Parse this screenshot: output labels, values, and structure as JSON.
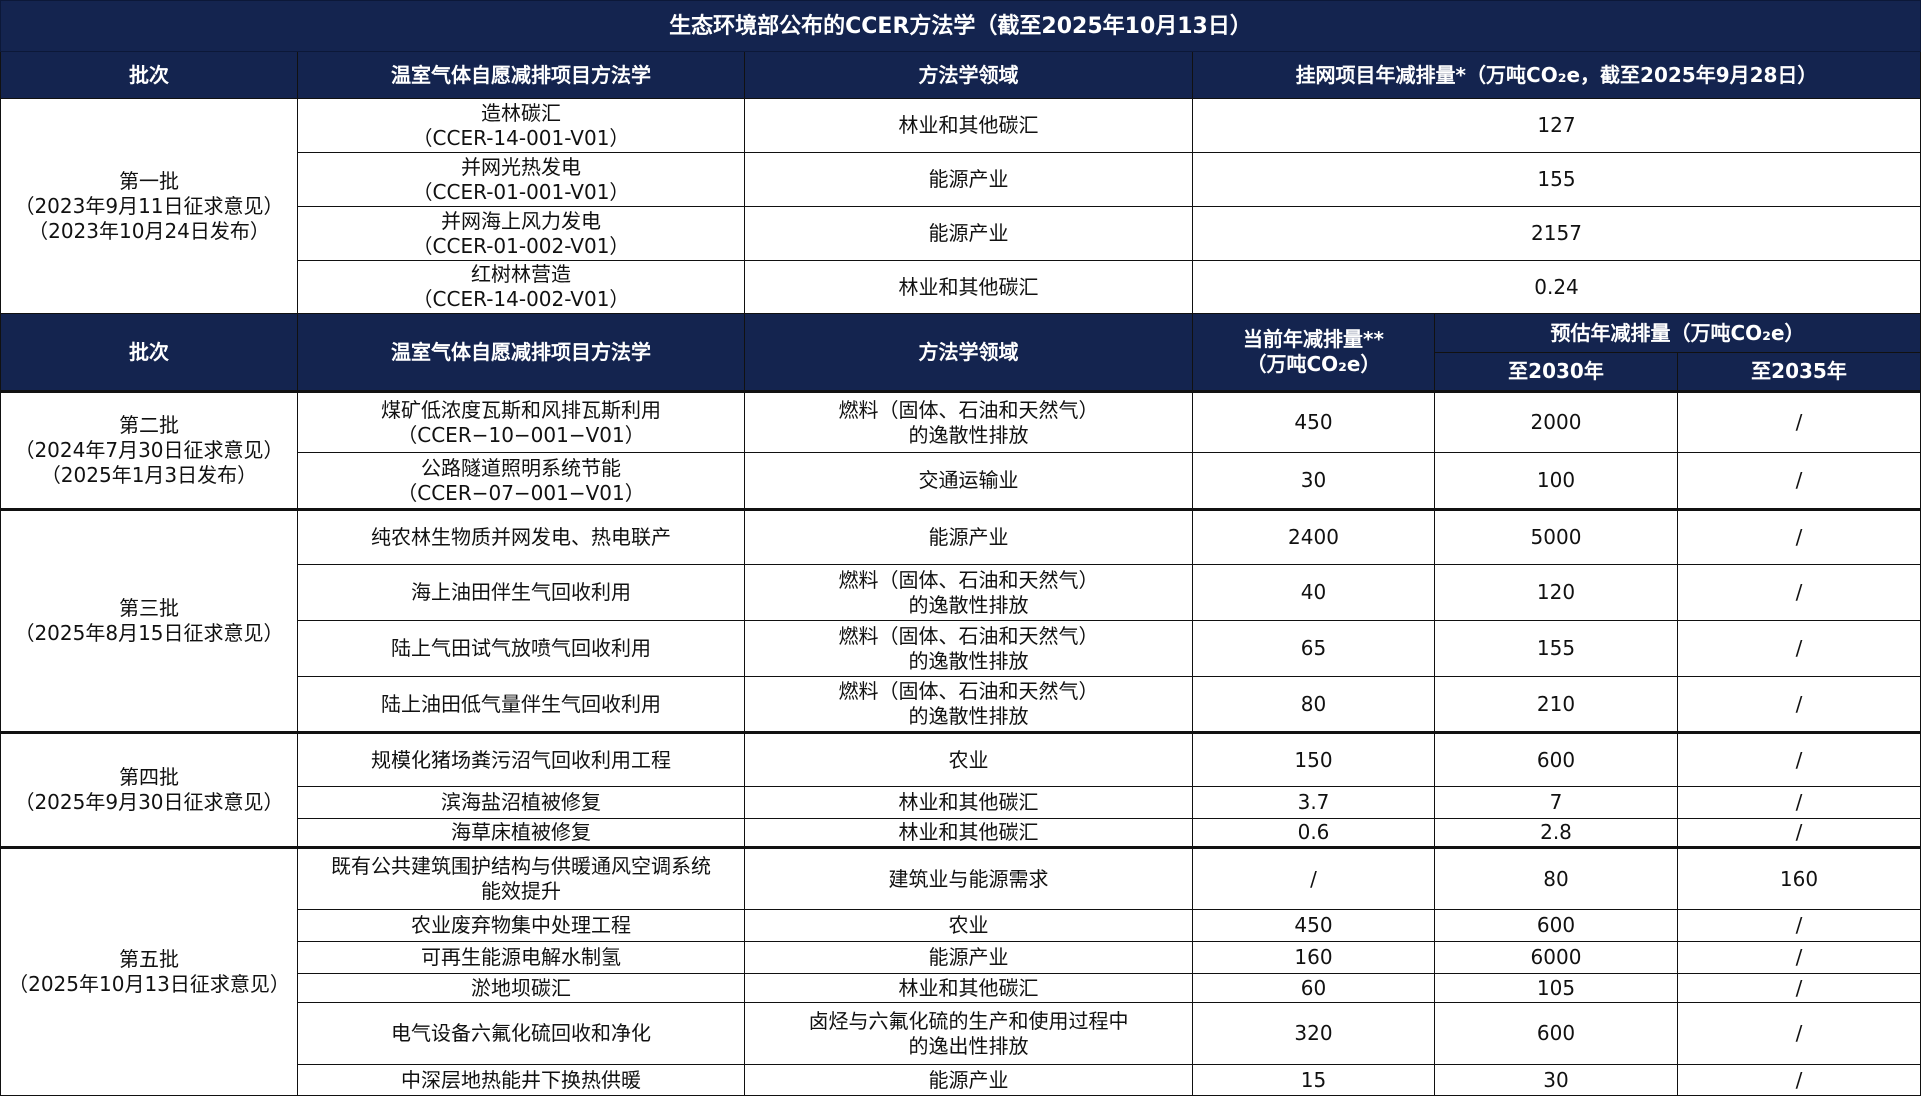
{
  "title": "生态环境部公布的CCER方法学（截至2025年10月13日）",
  "header1": {
    "batch": "批次",
    "methodology": "温室气体自愿减排项目方法学",
    "field": "方法学领域",
    "listed_reduction": "挂网项目年减排量*（万吨CO₂e，截至2025年9月28日）"
  },
  "group1": {
    "batch": "第一批\n（2023年9月11日征求意见）\n（2023年10月24日发布）",
    "rows": [
      {
        "methodology": "造林碳汇\n（CCER-14-001-V01）",
        "field": "林业和其他碳汇",
        "value": "127"
      },
      {
        "methodology": "并网光热发电\n（CCER-01-001-V01）",
        "field": "能源产业",
        "value": "155"
      },
      {
        "methodology": "并网海上风力发电\n（CCER-01-002-V01）",
        "field": "能源产业",
        "value": "2157"
      },
      {
        "methodology": "红树林营造\n（CCER-14-002-V01）",
        "field": "林业和其他碳汇",
        "value": "0.24"
      }
    ]
  },
  "header2": {
    "batch": "批次",
    "methodology": "温室气体自愿减排项目方法学",
    "field": "方法学领域",
    "current": "当前年减排量**\n（万吨CO₂e）",
    "estimated": "预估年减排量（万吨CO₂e）",
    "to2030": "至2030年",
    "to2035": "至2035年"
  },
  "groups": [
    {
      "batch": "第二批\n（2024年7月30日征求意见）\n（2025年1月3日发布）",
      "rows": [
        {
          "methodology": "煤矿低浓度瓦斯和风排瓦斯利用\n（CCER−10−001−V01）",
          "field": "燃料（固体、石油和天然气）\n的逸散性排放",
          "current": "450",
          "to2030": "2000",
          "to2035": "/"
        },
        {
          "methodology": "公路隧道照明系统节能\n（CCER−07−001−V01）",
          "field": "交通运输业",
          "current": "30",
          "to2030": "100",
          "to2035": "/"
        }
      ]
    },
    {
      "batch": "第三批\n（2025年8月15日征求意见）",
      "rows": [
        {
          "methodology": "纯农林生物质并网发电、热电联产",
          "field": "能源产业",
          "current": "2400",
          "to2030": "5000",
          "to2035": "/"
        },
        {
          "methodology": "海上油田伴生气回收利用",
          "field": "燃料（固体、石油和天然气）\n的逸散性排放",
          "current": "40",
          "to2030": "120",
          "to2035": "/"
        },
        {
          "methodology": "陆上气田试气放喷气回收利用",
          "field": "燃料（固体、石油和天然气）\n的逸散性排放",
          "current": "65",
          "to2030": "155",
          "to2035": "/"
        },
        {
          "methodology": "陆上油田低气量伴生气回收利用",
          "field": "燃料（固体、石油和天然气）\n的逸散性排放",
          "current": "80",
          "to2030": "210",
          "to2035": "/"
        }
      ]
    },
    {
      "batch": "第四批\n（2025年9月30日征求意见）",
      "rows": [
        {
          "methodology": "规模化猪场粪污沼气回收利用工程",
          "field": "农业",
          "current": "150",
          "to2030": "600",
          "to2035": "/"
        },
        {
          "methodology": "滨海盐沼植被修复",
          "field": "林业和其他碳汇",
          "current": "3.7",
          "to2030": "7",
          "to2035": "/"
        },
        {
          "methodology": "海草床植被修复",
          "field": "林业和其他碳汇",
          "current": "0.6",
          "to2030": "2.8",
          "to2035": "/"
        }
      ]
    },
    {
      "batch": "第五批\n（2025年10月13日征求意见）",
      "rows": [
        {
          "methodology": "既有公共建筑围护结构与供暖通风空调系统\n能效提升",
          "field": "建筑业与能源需求",
          "current": "/",
          "to2030": "80",
          "to2035": "160"
        },
        {
          "methodology": "农业废弃物集中处理工程",
          "field": "农业",
          "current": "450",
          "to2030": "600",
          "to2035": "/"
        },
        {
          "methodology": "可再生能源电解水制氢",
          "field": "能源产业",
          "current": "160",
          "to2030": "6000",
          "to2035": "/"
        },
        {
          "methodology": "淤地坝碳汇",
          "field": "林业和其他碳汇",
          "current": "60",
          "to2030": "105",
          "to2035": "/"
        },
        {
          "methodology": "电气设备六氟化硫回收和净化",
          "field": "卤烃与六氟化硫的生产和使用过程中\n的逸出性排放",
          "current": "320",
          "to2030": "600",
          "to2035": "/"
        },
        {
          "methodology": "中深层地热能井下换热供暖",
          "field": "能源产业",
          "current": "15",
          "to2030": "30",
          "to2035": "/"
        }
      ]
    }
  ]
}
